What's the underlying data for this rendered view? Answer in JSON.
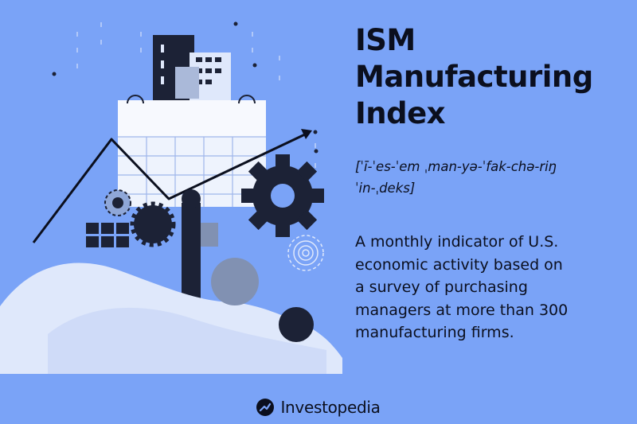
{
  "title": {
    "lines": [
      "ISM",
      "Manufacturing",
      "Index"
    ]
  },
  "pronunciation": {
    "line1": "[ˈī-ˈes-ˈem ˌman-yə-ˈfak-chə-riŋ",
    "line2": "ˈin-ˌdeks]"
  },
  "description": {
    "lines": [
      "A monthly indicator of U.S.",
      "economic activity based on",
      "a survey of purchasing",
      "managers at more than 300",
      "manufacturing firms."
    ]
  },
  "brand": {
    "name": "Investopedia"
  },
  "colors": {
    "background": "#7aa3f7",
    "ink": "#0b0f1e",
    "light": "#dfe8fb",
    "navy": "#1c2236"
  },
  "icons": [
    "building-icon",
    "calendar-icon",
    "trend-arrow-icon",
    "gear-icon",
    "target-icon",
    "grid-icon",
    "investopedia-logo-icon"
  ]
}
